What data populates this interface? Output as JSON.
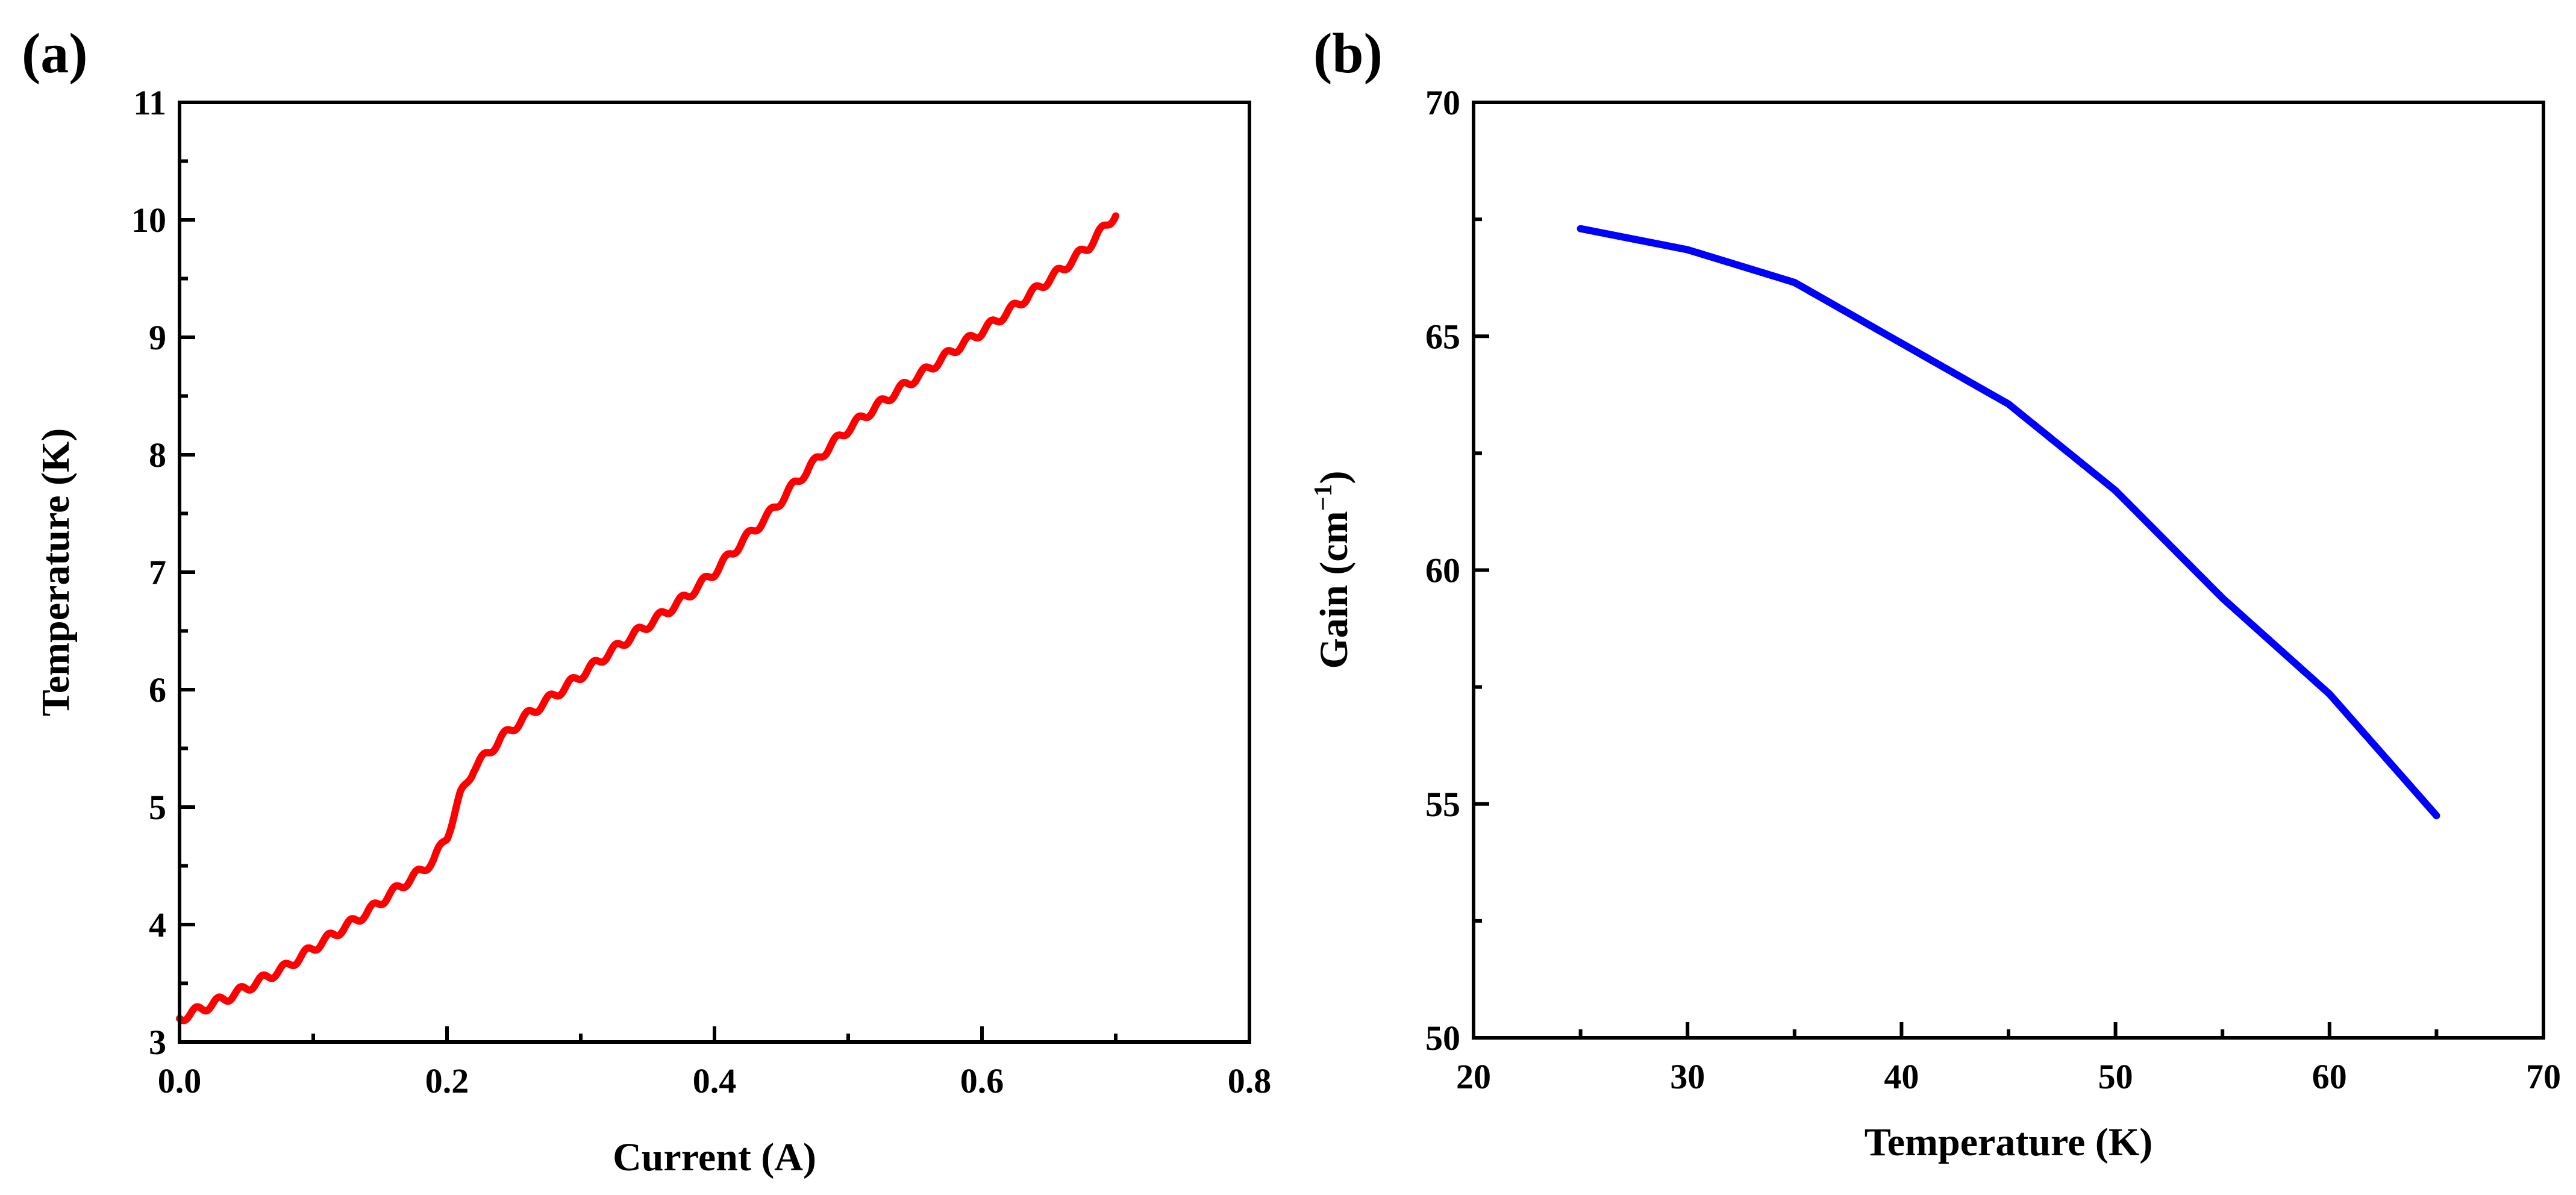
{
  "chart_data": [
    {
      "panel_label": "(a)",
      "type": "line",
      "title": "",
      "xlabel": "Current (A)",
      "ylabel": "Temperature (K)",
      "xlim": [
        0.0,
        0.8
      ],
      "ylim": [
        3,
        11
      ],
      "xticks": [
        0.0,
        0.2,
        0.4,
        0.6,
        0.8
      ],
      "xtick_labels": [
        "0.0",
        "0.2",
        "0.4",
        "0.6",
        "0.8"
      ],
      "yticks": [
        3,
        4,
        5,
        6,
        7,
        8,
        9,
        10,
        11
      ],
      "ytick_labels": [
        "3",
        "4",
        "5",
        "6",
        "7",
        "8",
        "9",
        "10",
        "11"
      ],
      "grid": false,
      "legend": "none",
      "series": [
        {
          "name": "Temperature",
          "color": "#ff0000",
          "x": [
            0.0,
            0.02,
            0.04,
            0.06,
            0.08,
            0.1,
            0.12,
            0.14,
            0.16,
            0.18,
            0.19,
            0.2,
            0.21,
            0.22,
            0.23,
            0.24,
            0.26,
            0.28,
            0.3,
            0.32,
            0.34,
            0.36,
            0.38,
            0.4,
            0.42,
            0.44,
            0.46,
            0.48,
            0.5,
            0.52,
            0.54,
            0.56,
            0.58,
            0.6,
            0.62,
            0.64,
            0.66,
            0.68,
            0.7
          ],
          "y": [
            3.2,
            3.3,
            3.4,
            3.52,
            3.64,
            3.8,
            3.95,
            4.1,
            4.28,
            4.45,
            4.55,
            4.75,
            5.1,
            5.33,
            5.45,
            5.58,
            5.78,
            5.95,
            6.12,
            6.3,
            6.47,
            6.63,
            6.8,
            7.0,
            7.25,
            7.48,
            7.75,
            8.0,
            8.22,
            8.4,
            8.57,
            8.73,
            8.9,
            9.05,
            9.22,
            9.4,
            9.58,
            9.78,
            10.05
          ],
          "ripple": true
        }
      ]
    },
    {
      "panel_label": "(b)",
      "type": "line",
      "title": "",
      "xlabel": "Temperature (K)",
      "ylabel_text": "Gain (cm",
      "ylabel_superscript": "−1",
      "ylabel_close": ")",
      "xlim": [
        20,
        70
      ],
      "ylim": [
        50,
        70
      ],
      "xticks": [
        20,
        30,
        40,
        50,
        60,
        70
      ],
      "xtick_labels": [
        "20",
        "30",
        "40",
        "50",
        "60",
        "70"
      ],
      "yticks": [
        50,
        55,
        60,
        65,
        70
      ],
      "ytick_labels": [
        "50",
        "55",
        "60",
        "65",
        "70"
      ],
      "grid": false,
      "legend": "none",
      "series": [
        {
          "name": "Gain",
          "color": "#0000ff",
          "x": [
            25,
            30,
            35,
            40,
            45,
            50,
            55,
            60,
            65
          ],
          "y": [
            67.3,
            66.85,
            66.15,
            64.85,
            63.55,
            61.7,
            59.4,
            57.35,
            54.75
          ],
          "ripple": false
        }
      ]
    }
  ]
}
